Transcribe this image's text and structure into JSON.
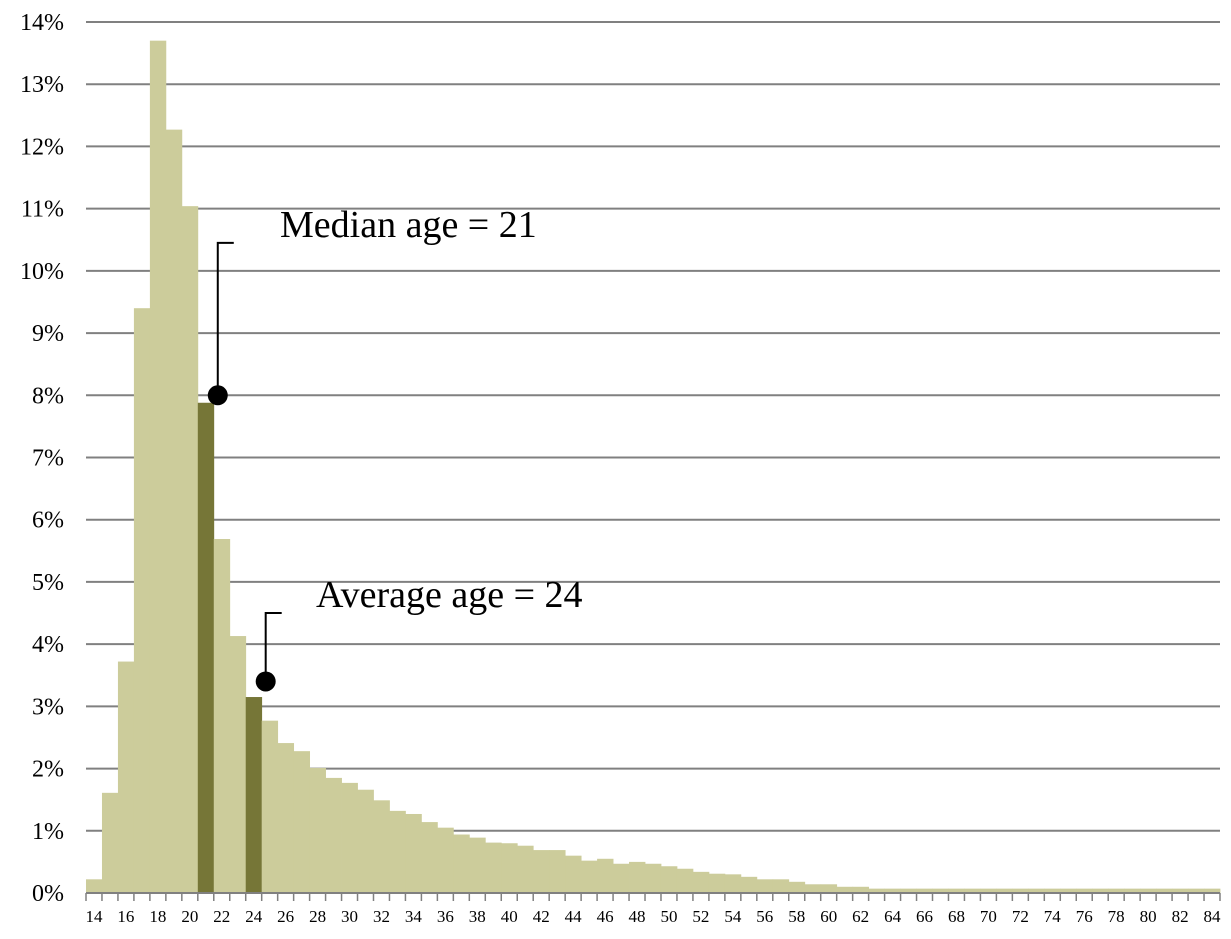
{
  "chart_data": {
    "type": "bar",
    "title": "",
    "xlabel": "",
    "ylabel": "",
    "y_unit": "%",
    "ylim": [
      0,
      14
    ],
    "y_tick_step": 1,
    "grid": true,
    "legend": "none",
    "x_tick_step": 2,
    "categories": [
      14,
      15,
      16,
      17,
      18,
      19,
      20,
      21,
      22,
      23,
      24,
      25,
      26,
      27,
      28,
      29,
      30,
      31,
      32,
      33,
      34,
      35,
      36,
      37,
      38,
      39,
      40,
      41,
      42,
      43,
      44,
      45,
      46,
      47,
      48,
      49,
      50,
      51,
      52,
      53,
      54,
      55,
      56,
      57,
      58,
      59,
      60,
      61,
      62,
      63,
      64,
      65,
      66,
      67,
      68,
      69,
      70,
      71,
      72,
      73,
      74,
      75,
      76,
      77,
      78,
      79,
      80,
      81,
      82,
      83,
      84
    ],
    "values": [
      0.22,
      1.61,
      3.72,
      9.4,
      13.7,
      12.27,
      11.04,
      7.88,
      5.69,
      4.13,
      3.15,
      2.77,
      2.41,
      2.28,
      2.01,
      1.85,
      1.77,
      1.66,
      1.49,
      1.32,
      1.27,
      1.14,
      1.05,
      0.94,
      0.89,
      0.81,
      0.8,
      0.76,
      0.69,
      0.69,
      0.6,
      0.52,
      0.55,
      0.47,
      0.5,
      0.47,
      0.43,
      0.39,
      0.34,
      0.31,
      0.3,
      0.26,
      0.22,
      0.22,
      0.18,
      0.14,
      0.14,
      0.1,
      0.1,
      0.07,
      0.07,
      0.07,
      0.07,
      0.07,
      0.07,
      0.07,
      0.07,
      0.07,
      0.07,
      0.07,
      0.07,
      0.07,
      0.07,
      0.07,
      0.07,
      0.07,
      0.07,
      0.07,
      0.07,
      0.07,
      0.07
    ],
    "highlight": [
      {
        "category": 21,
        "label": "Median age = 21",
        "marker_value": 8.0
      },
      {
        "category": 24,
        "label": "Average age = 24",
        "marker_value": 3.4
      }
    ],
    "colors": {
      "bar": "#cccc9b",
      "highlight_bar": "#767637",
      "grid": "#808080",
      "text": "#000000",
      "marker": "#000000"
    }
  }
}
